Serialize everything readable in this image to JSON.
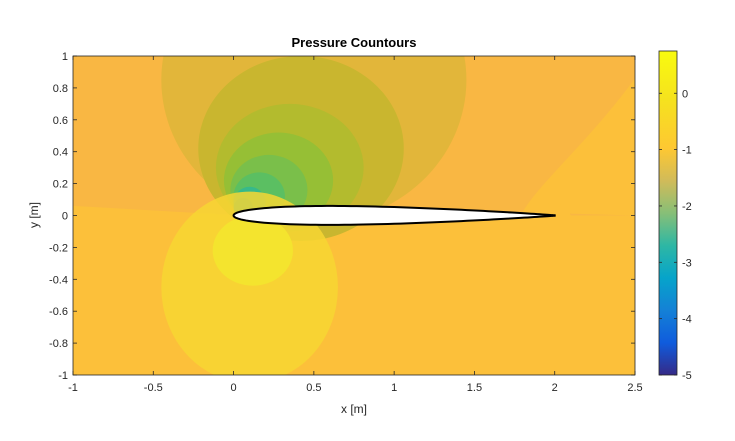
{
  "chart_data": {
    "type": "heatmap",
    "title": "Pressure Countours",
    "xlabel": "x [m]",
    "ylabel": "y [m]",
    "xlim": [
      -1,
      2.5
    ],
    "ylim": [
      -1,
      1
    ],
    "x_ticks": [
      "-1",
      "-0.5",
      "0",
      "0.5",
      "1",
      "1.5",
      "2",
      "2.5"
    ],
    "x_tick_values": [
      -1,
      -0.5,
      0,
      0.5,
      1,
      1.5,
      2,
      2.5
    ],
    "y_ticks": [
      "-1",
      "-0.8",
      "-0.6",
      "-0.4",
      "-0.2",
      "0",
      "0.2",
      "0.4",
      "0.6",
      "0.8",
      "1"
    ],
    "y_tick_values": [
      -1,
      -0.8,
      -0.6,
      -0.4,
      -0.2,
      0,
      0.2,
      0.4,
      0.6,
      0.8,
      1
    ],
    "colorbar": {
      "range": [
        -5,
        0.75
      ],
      "tick_labels": [
        "0",
        "-1",
        "-2",
        "-3",
        "-4",
        "-5"
      ],
      "tick_values": [
        0,
        -1,
        -2,
        -3,
        -4,
        -5
      ],
      "colormap": "parula"
    },
    "airfoil": {
      "leading_edge_x": 0,
      "trailing_edge_x": 2,
      "max_thickness": 0.12,
      "max_thickness_x": 0.6
    },
    "contour_levels": [
      {
        "level": 0.3,
        "color": "#fcc03a"
      },
      {
        "level": 0.1,
        "color": "#f9b743"
      },
      {
        "level": -0.15,
        "color": "#e2b63a"
      },
      {
        "level": -0.45,
        "color": "#c9b62f"
      },
      {
        "level": -0.75,
        "color": "#b3bb2e"
      },
      {
        "level": -1.0,
        "color": "#96bf35"
      },
      {
        "level": -1.3,
        "color": "#7abf4a"
      },
      {
        "level": -1.6,
        "color": "#5bbf62"
      },
      {
        "level": -1.9,
        "color": "#37b98a"
      },
      {
        "level": -2.2,
        "color": "#18b1a8"
      },
      {
        "level": 0.45,
        "color": "#f7d633"
      },
      {
        "level": 0.6,
        "color": "#f4e42e"
      }
    ]
  }
}
